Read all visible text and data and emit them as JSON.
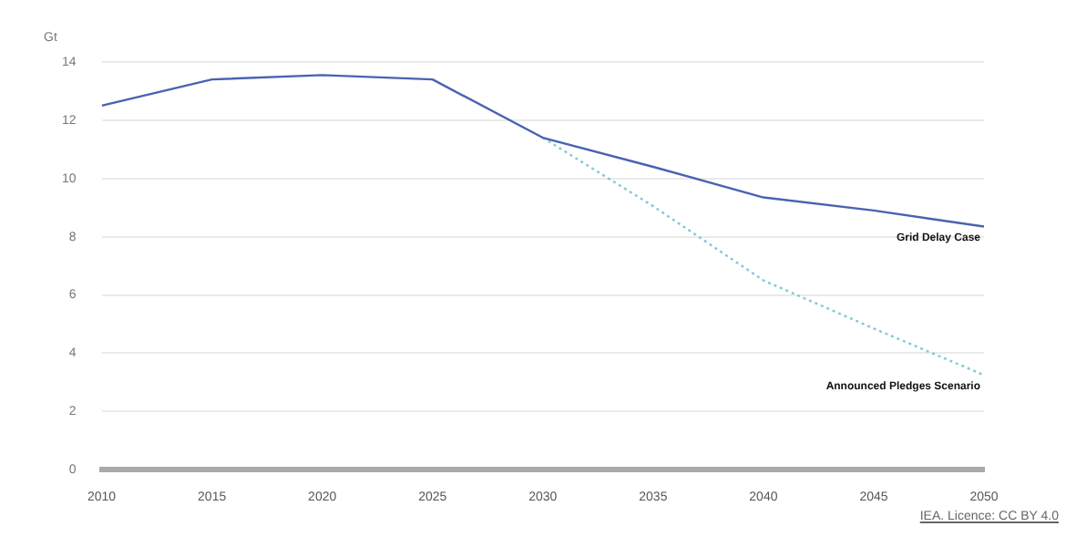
{
  "chart_data": {
    "type": "line",
    "ylabel": "Gt",
    "x": [
      2010,
      2015,
      2020,
      2025,
      2030,
      2035,
      2040,
      2045,
      2050
    ],
    "xlim": [
      2010,
      2050
    ],
    "xticks": [
      2010,
      2015,
      2020,
      2025,
      2030,
      2035,
      2040,
      2045,
      2050
    ],
    "ylim": [
      0,
      14
    ],
    "yticks": [
      0,
      2,
      4,
      6,
      8,
      10,
      12,
      14
    ],
    "grid": "y",
    "legend": false,
    "marker": "none",
    "series": [
      {
        "name": "Grid Delay Case",
        "color": "#4a62b0",
        "line_style": "solid",
        "values": [
          12.5,
          13.4,
          13.55,
          13.4,
          11.4,
          10.4,
          9.35,
          8.9,
          8.35
        ]
      },
      {
        "name": "Announced Pledges Scenario",
        "color": "#7fcad6",
        "line_style": "dotted",
        "values": [
          null,
          null,
          null,
          null,
          11.4,
          9.05,
          6.5,
          4.85,
          3.25
        ]
      }
    ],
    "annotations": [
      "IEA. Licence: CC BY 4.0"
    ]
  }
}
